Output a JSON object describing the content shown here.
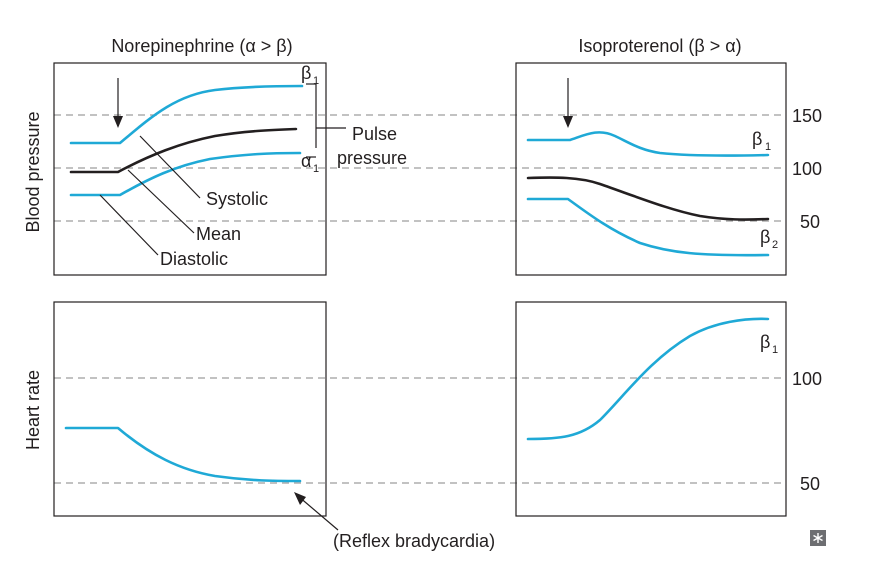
{
  "titles": {
    "left": "Norepinephrine (α > β)",
    "right": "Isoproterenol (β > α)"
  },
  "axes": {
    "blood_pressure": "Blood pressure",
    "heart_rate": "Heart rate",
    "bp_ticks": [
      "150",
      "100",
      "50"
    ],
    "hr_ticks": [
      "100",
      "50"
    ]
  },
  "labels": {
    "systolic": "Systolic",
    "mean": "Mean",
    "diastolic": "Diastolic",
    "pulse_pressure_line1": "Pulse",
    "pulse_pressure_line2": "pressure",
    "reflex": "(Reflex bradycardia)"
  },
  "receptors": {
    "greek_beta": "β",
    "greek_alpha": "α",
    "sub_1": "1",
    "sub_2": "2"
  },
  "colors": {
    "curve": "#1fa9d6",
    "mean_curve": "#231f20",
    "gridline": "#9d9d9d"
  },
  "icons": {
    "corner": "asterisk-box-icon"
  }
}
